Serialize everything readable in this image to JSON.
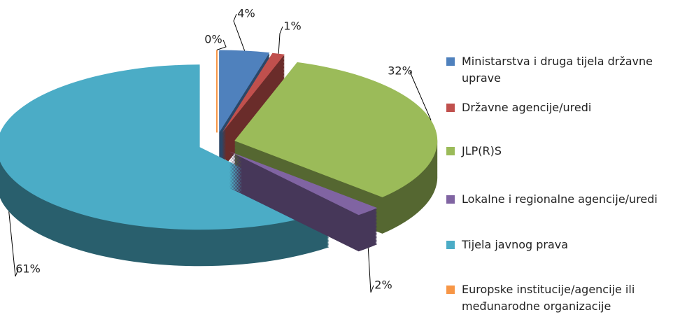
{
  "chart_data": {
    "type": "pie",
    "categories": [
      "Ministarstva i druga tijela državne uprave",
      "Državne agencije/uredi",
      "JLP(R)S",
      "Lokalne i regionalne agencije/uredi",
      "Tijela javnog prava",
      "Europske institucije/agencije ili međunarodne organizacije"
    ],
    "values": [
      4,
      1,
      32,
      2,
      61,
      0
    ],
    "value_labels": [
      "4%",
      "1%",
      "32%",
      "2%",
      "61%",
      "0%"
    ],
    "colors": [
      "#4f81bd",
      "#c0504d",
      "#9bbb59",
      "#8064a2",
      "#4bacc6",
      "#f79646"
    ],
    "legend": "right"
  }
}
